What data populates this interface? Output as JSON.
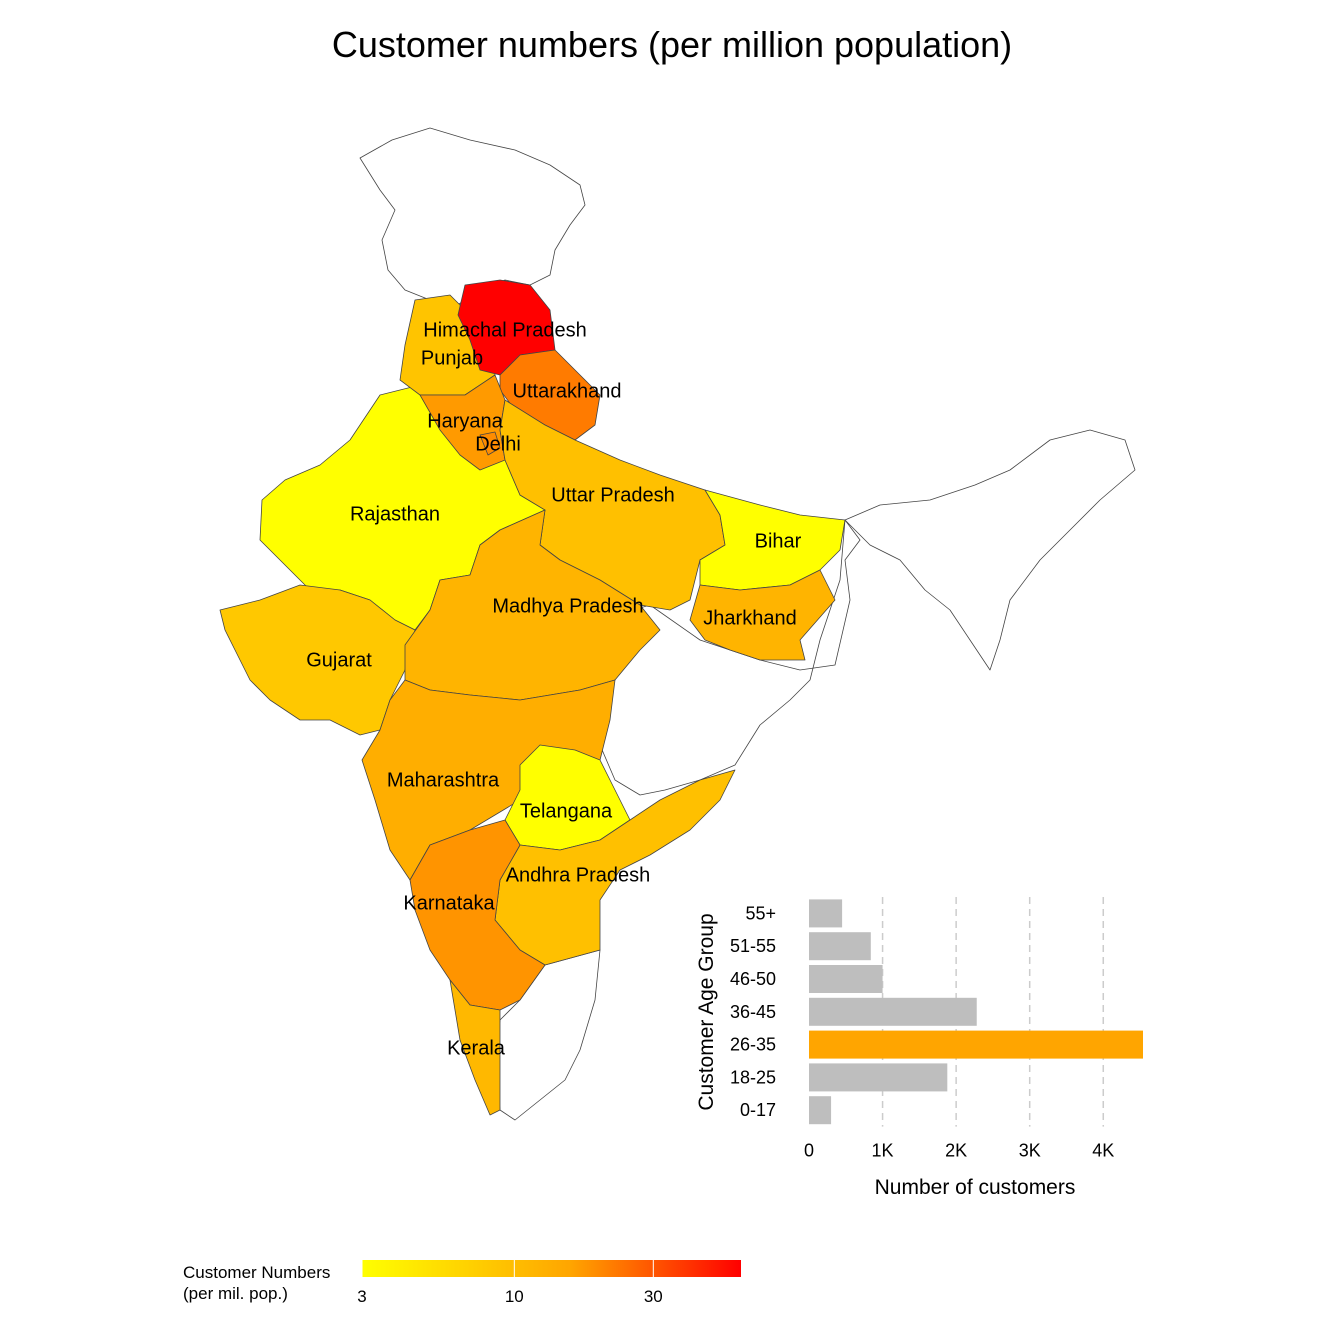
{
  "title": "Customer numbers (per million population)",
  "states": [
    {
      "name": "Himachal Pradesh",
      "value": 60,
      "color": "#ff0000"
    },
    {
      "name": "Punjab",
      "value": 7,
      "color": "#ffc400"
    },
    {
      "name": "Uttarakhand",
      "value": 25,
      "color": "#ff7b00"
    },
    {
      "name": "Haryana",
      "value": 18,
      "color": "#ff9a00"
    },
    {
      "name": "Delhi",
      "value": 20,
      "color": "#ff8c00"
    },
    {
      "name": "Uttar Pradesh",
      "value": 8,
      "color": "#ffc000"
    },
    {
      "name": "Rajasthan",
      "value": 3,
      "color": "#ffff00"
    },
    {
      "name": "Bihar",
      "value": 3.5,
      "color": "#ffff00"
    },
    {
      "name": "Madhya Pradesh",
      "value": 11,
      "color": "#ffb400"
    },
    {
      "name": "Jharkhand",
      "value": 11,
      "color": "#ffb400"
    },
    {
      "name": "Gujarat",
      "value": 7,
      "color": "#ffc800"
    },
    {
      "name": "Maharashtra",
      "value": 12,
      "color": "#ffae00"
    },
    {
      "name": "Telangana",
      "value": 3,
      "color": "#ffff00"
    },
    {
      "name": "Andhra Pradesh",
      "value": 8,
      "color": "#ffc000"
    },
    {
      "name": "Karnataka",
      "value": 18,
      "color": "#ff9400"
    },
    {
      "name": "Kerala",
      "value": 10,
      "color": "#ffb800"
    }
  ],
  "inset": {
    "ylabel": "Customer Age Group",
    "xlabel": "Number of customers",
    "chart_data": {
      "type": "bar",
      "orientation": "horizontal",
      "categories": [
        "0-17",
        "18-25",
        "26-35",
        "36-45",
        "46-50",
        "51-55",
        "55+"
      ],
      "values": [
        300,
        1880,
        4540,
        2280,
        1000,
        840,
        450
      ],
      "highlight": "26-35",
      "bar_color": "#bebebe",
      "highlight_color": "#ffa500",
      "xlim": [
        0,
        4540
      ],
      "xticks": [
        0,
        1000,
        2000,
        3000,
        4000
      ],
      "xtick_labels": [
        "0",
        "1K",
        "2K",
        "3K",
        "4K"
      ],
      "grid": "vertical-dashed"
    }
  },
  "legend": {
    "title_line1": "Customer Numbers",
    "title_line2": "(per mil. pop.)",
    "scale": "log",
    "range": [
      3,
      60
    ],
    "ticks": [
      "3",
      "10",
      "30"
    ],
    "colors": [
      "#ffff00",
      "#ffa500",
      "#ff0000"
    ]
  }
}
